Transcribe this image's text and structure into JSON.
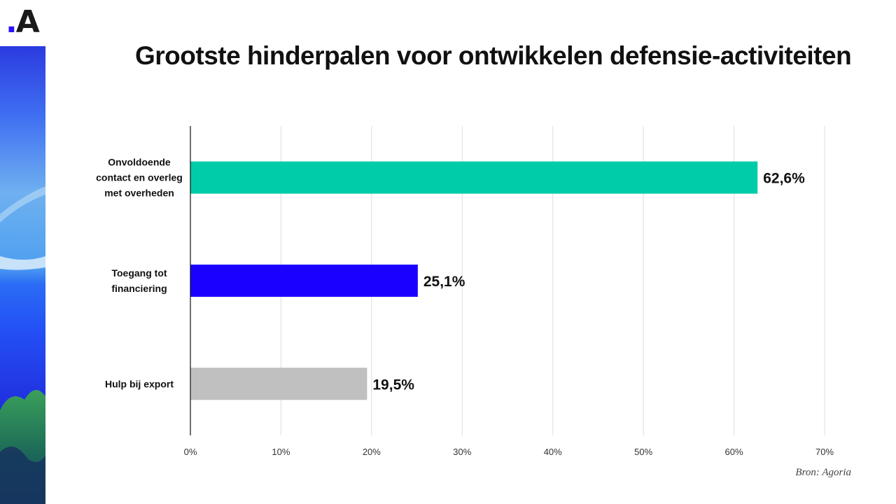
{
  "logo": {
    "dot": ".",
    "letter": "A",
    "accent_color": "#2a12ff"
  },
  "footer": {
    "source": "Bron: Agoria"
  },
  "chart_data": {
    "type": "bar",
    "orientation": "horizontal",
    "title": "Grootste hinderpalen voor ontwikkelen defensie-activiteiten",
    "categories": [
      [
        "Onvoldoende",
        "contact en overleg",
        "met overheden"
      ],
      [
        "Toegang tot",
        "financiering"
      ],
      [
        "Hulp bij export"
      ]
    ],
    "values": [
      62.6,
      25.1,
      19.5
    ],
    "value_labels": [
      "62,6%",
      "25,1%",
      "19,5%"
    ],
    "colors": [
      "#00ccaa",
      "#1a00ff",
      "#c0c0c0"
    ],
    "xlim": [
      0,
      70
    ],
    "xticks": [
      0,
      10,
      20,
      30,
      40,
      50,
      60,
      70
    ],
    "xtick_labels": [
      "0%",
      "10%",
      "20%",
      "30%",
      "40%",
      "50%",
      "60%",
      "70%"
    ],
    "grid": true,
    "legend": "none"
  }
}
